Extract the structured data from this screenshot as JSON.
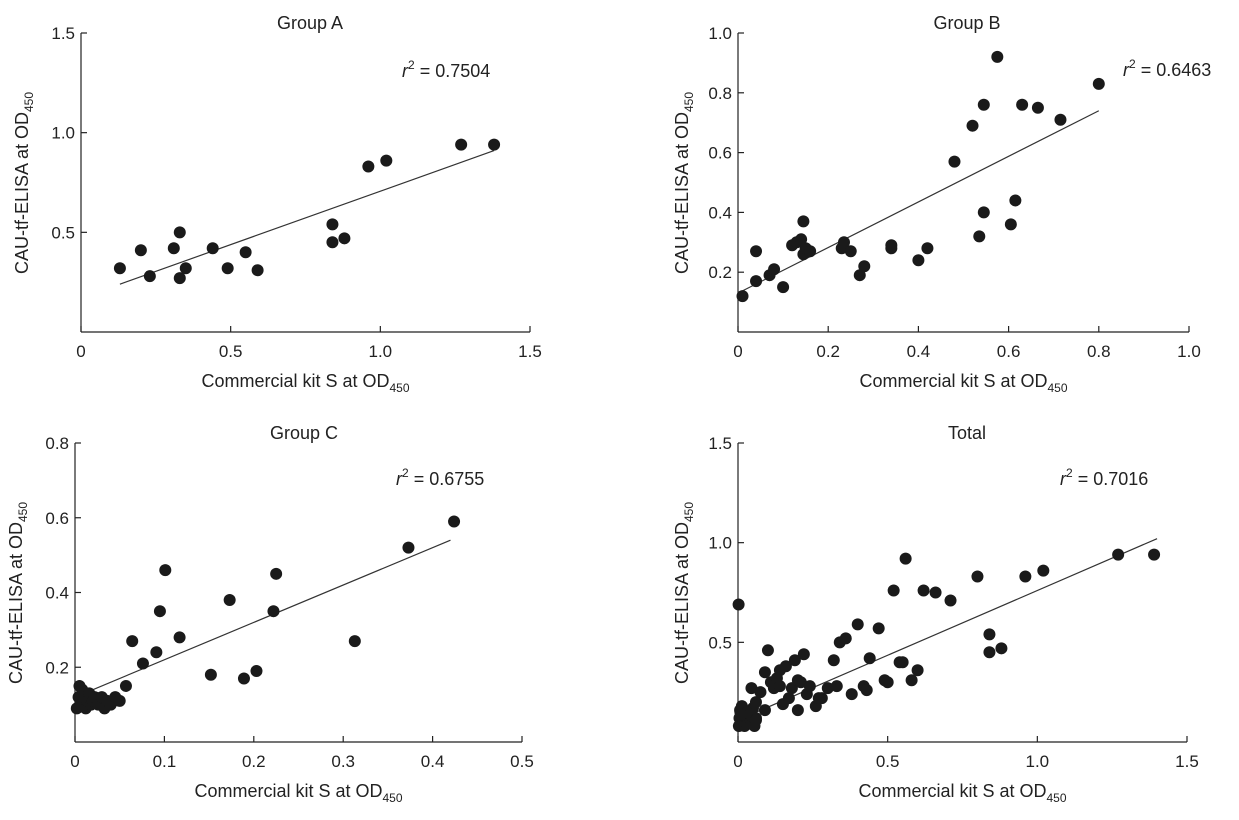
{
  "figure_title": "",
  "chart_data": [
    {
      "id": "group-a",
      "type": "scatter",
      "title": "Group A",
      "xlabel": "Commercial kit S at OD",
      "xlabel_sub": "450",
      "ylabel": "CAU-tf-ELISA at OD",
      "ylabel_sub": "450",
      "xlim": [
        0,
        1.5
      ],
      "ylim": [
        0,
        1.5
      ],
      "xticks": [
        0,
        0.5,
        1.0,
        1.5
      ],
      "xtick_labels": [
        "0",
        "0.5",
        "1.0",
        "1.5"
      ],
      "yticks": [
        0.5,
        1.0,
        1.5
      ],
      "ytick_labels": [
        "0.5",
        "1.0",
        "1.5"
      ],
      "r2_label": "r",
      "r2_sup": "2",
      "r2_value": " = 0.7504",
      "fit_line": [
        [
          0.13,
          0.24
        ],
        [
          1.38,
          0.91
        ]
      ],
      "x": [
        0.13,
        0.2,
        0.23,
        0.31,
        0.33,
        0.33,
        0.35,
        0.44,
        0.49,
        0.55,
        0.59,
        0.84,
        0.84,
        0.88,
        0.96,
        1.02,
        1.27,
        1.38
      ],
      "y": [
        0.32,
        0.41,
        0.28,
        0.42,
        0.27,
        0.5,
        0.32,
        0.42,
        0.32,
        0.4,
        0.31,
        0.54,
        0.45,
        0.47,
        0.83,
        0.86,
        0.94,
        0.94
      ]
    },
    {
      "id": "group-b",
      "type": "scatter",
      "title": "Group B",
      "xlabel": "Commercial kit S at OD",
      "xlabel_sub": "450",
      "ylabel": "CAU-tf-ELISA at OD",
      "ylabel_sub": "450",
      "xlim": [
        0,
        1.0
      ],
      "ylim": [
        0,
        1.0
      ],
      "xticks": [
        0,
        0.2,
        0.4,
        0.6,
        0.8,
        1.0
      ],
      "xtick_labels": [
        "0",
        "0.2",
        "0.4",
        "0.6",
        "0.8",
        "1.0"
      ],
      "yticks": [
        0.2,
        0.4,
        0.6,
        0.8,
        1.0
      ],
      "ytick_labels": [
        "0.2",
        "0.4",
        "0.6",
        "0.8",
        "1.0"
      ],
      "r2_label": "r",
      "r2_sup": "2",
      "r2_value": " = 0.6463",
      "fit_line": [
        [
          0.0,
          0.13
        ],
        [
          0.8,
          0.74
        ]
      ],
      "x": [
        0.01,
        0.04,
        0.04,
        0.07,
        0.08,
        0.1,
        0.12,
        0.13,
        0.14,
        0.145,
        0.145,
        0.15,
        0.16,
        0.23,
        0.235,
        0.25,
        0.27,
        0.28,
        0.34,
        0.34,
        0.4,
        0.42,
        0.48,
        0.52,
        0.535,
        0.545,
        0.545,
        0.575,
        0.605,
        0.615,
        0.63,
        0.665,
        0.715,
        0.8
      ],
      "y": [
        0.12,
        0.17,
        0.27,
        0.19,
        0.21,
        0.15,
        0.29,
        0.3,
        0.31,
        0.37,
        0.26,
        0.28,
        0.27,
        0.28,
        0.3,
        0.27,
        0.19,
        0.22,
        0.29,
        0.28,
        0.24,
        0.28,
        0.57,
        0.69,
        0.32,
        0.4,
        0.76,
        0.92,
        0.36,
        0.44,
        0.76,
        0.75,
        0.71,
        0.83
      ]
    },
    {
      "id": "group-c",
      "type": "scatter",
      "title": "Group C",
      "xlabel": "Commercial kit S at OD",
      "xlabel_sub": "450",
      "ylabel": "CAU-tf-ELISA at OD",
      "ylabel_sub": "450",
      "xlim": [
        0,
        0.5
      ],
      "ylim": [
        0,
        0.8
      ],
      "xticks": [
        0,
        0.1,
        0.2,
        0.3,
        0.4,
        0.5
      ],
      "xtick_labels": [
        "0",
        "0.1",
        "0.2",
        "0.3",
        "0.4",
        "0.5"
      ],
      "yticks": [
        0.2,
        0.4,
        0.6,
        0.8
      ],
      "ytick_labels": [
        "0.2",
        "0.4",
        "0.6",
        "0.8"
      ],
      "r2_label": "r",
      "r2_sup": "2",
      "r2_value": " = 0.6755",
      "fit_line": [
        [
          0.0,
          0.12
        ],
        [
          0.42,
          0.54
        ]
      ],
      "x": [
        0.002,
        0.004,
        0.005,
        0.006,
        0.008,
        0.01,
        0.012,
        0.014,
        0.016,
        0.018,
        0.02,
        0.022,
        0.026,
        0.03,
        0.033,
        0.036,
        0.04,
        0.045,
        0.05,
        0.057,
        0.064,
        0.076,
        0.091,
        0.095,
        0.101,
        0.117,
        0.152,
        0.173,
        0.189,
        0.203,
        0.222,
        0.225,
        0.313,
        0.373,
        0.424
      ],
      "y": [
        0.09,
        0.12,
        0.15,
        0.1,
        0.14,
        0.12,
        0.09,
        0.11,
        0.13,
        0.1,
        0.11,
        0.12,
        0.1,
        0.12,
        0.09,
        0.11,
        0.1,
        0.12,
        0.11,
        0.15,
        0.27,
        0.21,
        0.24,
        0.35,
        0.46,
        0.28,
        0.18,
        0.38,
        0.17,
        0.19,
        0.35,
        0.45,
        0.27,
        0.52,
        0.59
      ]
    },
    {
      "id": "total",
      "type": "scatter",
      "title": "Total",
      "xlabel": "Commercial kit S at OD",
      "xlabel_sub": "450",
      "ylabel": "CAU-tf-ELISA at OD",
      "ylabel_sub": "450",
      "xlim": [
        0,
        1.5
      ],
      "ylim": [
        0,
        1.5
      ],
      "xticks": [
        0,
        0.5,
        1.0,
        1.5
      ],
      "xtick_labels": [
        "0",
        "0.5",
        "1.0",
        "1.5"
      ],
      "yticks": [
        0.5,
        1.0,
        1.5
      ],
      "ytick_labels": [
        "0.5",
        "1.0",
        "1.5"
      ],
      "r2_label": "r",
      "r2_sup": "2",
      "r2_value": " = 0.7016",
      "fit_line": [
        [
          0.0,
          0.11
        ],
        [
          1.4,
          1.02
        ]
      ],
      "x": [
        0.003,
        0.005,
        0.008,
        0.01,
        0.012,
        0.015,
        0.018,
        0.02,
        0.022,
        0.025,
        0.028,
        0.03,
        0.035,
        0.04,
        0.045,
        0.05,
        0.055,
        0.06,
        0.002,
        0.007,
        0.013,
        0.03,
        0.045,
        0.06,
        0.075,
        0.09,
        0.1,
        0.11,
        0.12,
        0.13,
        0.14,
        0.15,
        0.16,
        0.17,
        0.18,
        0.19,
        0.2,
        0.21,
        0.22,
        0.23,
        0.24,
        0.26,
        0.28,
        0.3,
        0.32,
        0.33,
        0.34,
        0.36,
        0.38,
        0.4,
        0.42,
        0.44,
        0.47,
        0.49,
        0.52,
        0.54,
        0.55,
        0.56,
        0.58,
        0.6,
        0.62,
        0.66,
        0.71,
        0.8,
        0.84,
        0.84,
        0.88,
        0.96,
        1.02,
        1.27,
        1.39,
        0.01,
        0.09,
        0.14,
        0.06,
        0.2,
        0.5,
        0.27,
        0.43
      ],
      "y": [
        0.08,
        0.12,
        0.15,
        0.1,
        0.14,
        0.09,
        0.11,
        0.13,
        0.08,
        0.1,
        0.12,
        0.09,
        0.1,
        0.12,
        0.13,
        0.17,
        0.08,
        0.12,
        0.69,
        0.16,
        0.18,
        0.15,
        0.27,
        0.2,
        0.25,
        0.35,
        0.46,
        0.3,
        0.27,
        0.32,
        0.36,
        0.19,
        0.38,
        0.22,
        0.27,
        0.41,
        0.31,
        0.3,
        0.44,
        0.24,
        0.28,
        0.18,
        0.22,
        0.27,
        0.41,
        0.28,
        0.5,
        0.52,
        0.24,
        0.59,
        0.28,
        0.42,
        0.57,
        0.31,
        0.76,
        0.4,
        0.4,
        0.92,
        0.31,
        0.36,
        0.76,
        0.75,
        0.71,
        0.83,
        0.54,
        0.45,
        0.47,
        0.83,
        0.86,
        0.94,
        0.94,
        0.14,
        0.16,
        0.28,
        0.11,
        0.16,
        0.3,
        0.22,
        0.26
      ]
    }
  ]
}
